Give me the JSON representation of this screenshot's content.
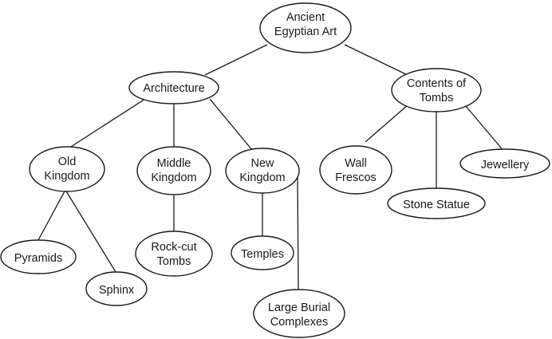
{
  "diagram": {
    "nodes": {
      "root": [
        "Ancient",
        "Egyptian Art"
      ],
      "architecture": [
        "Architecture"
      ],
      "contents": [
        "Contents of",
        "Tombs"
      ],
      "old": [
        "Old",
        "Kingdom"
      ],
      "middle": [
        "Middle",
        "Kingdom"
      ],
      "new": [
        "New",
        "Kingdom"
      ],
      "wall": [
        "Wall",
        "Frescos"
      ],
      "stone": [
        "Stone Statue"
      ],
      "jewellery": [
        "Jewellery"
      ],
      "pyramids": [
        "Pyramids"
      ],
      "sphinx": [
        "Sphinx"
      ],
      "rockcut": [
        "Rock-cut",
        "Tombs"
      ],
      "temples": [
        "Temples"
      ],
      "burial": [
        "Large Burial",
        "Complexes"
      ]
    }
  }
}
